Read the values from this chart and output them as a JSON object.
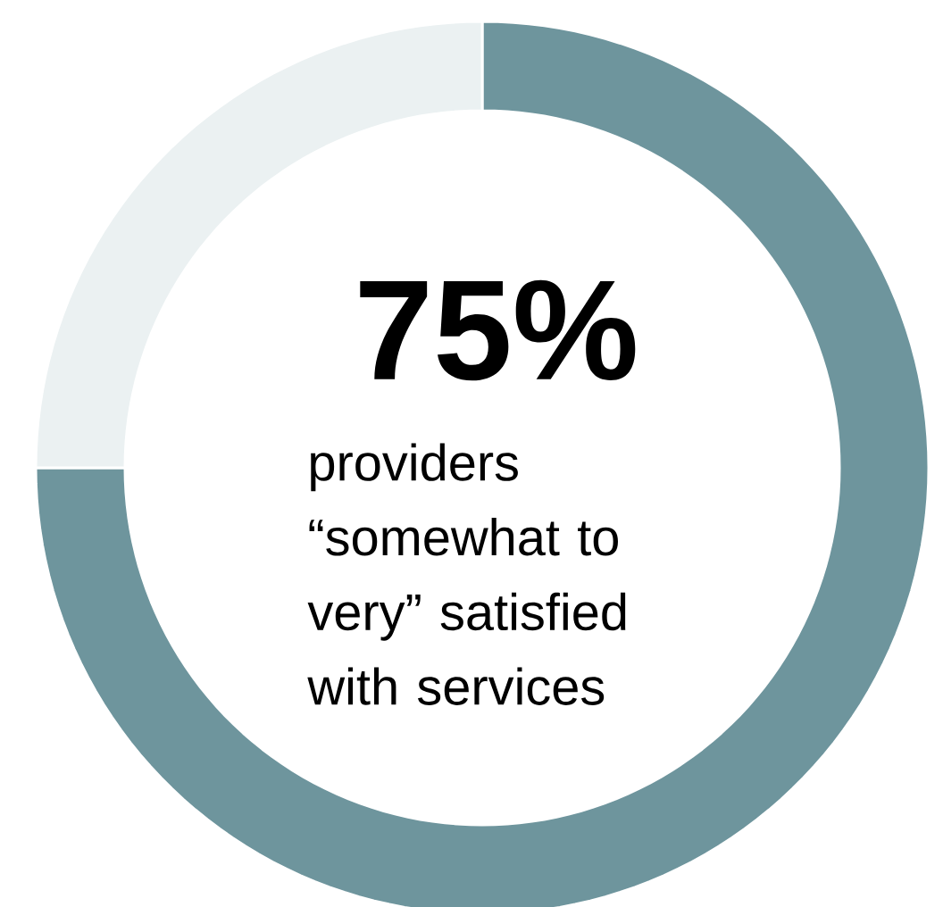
{
  "chart_data": {
    "type": "donut",
    "categories": [
      null,
      null
    ],
    "values": [
      75,
      25
    ],
    "colors": [
      "#6e959d",
      "#ebf1f2"
    ],
    "value_labels": [
      "75%",
      null
    ],
    "annotations": [
      "providers “somewhat to very” satisfied with services"
    ]
  }
}
